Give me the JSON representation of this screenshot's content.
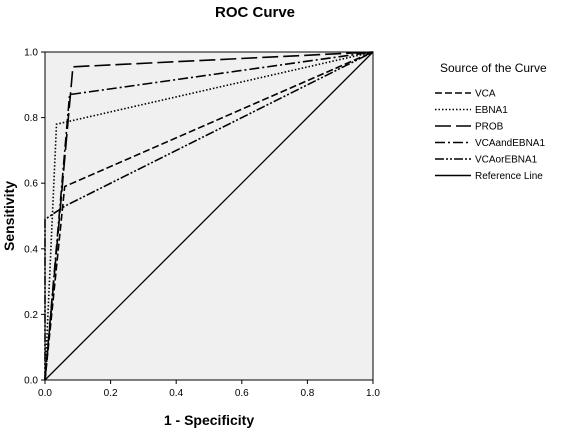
{
  "chart_data": {
    "type": "line",
    "title": "ROC Curve",
    "xlabel": "1 - Specificity",
    "ylabel": "Sensitivity",
    "xlim": [
      0,
      1
    ],
    "ylim": [
      0,
      1
    ],
    "xticks": [
      "0.0",
      "0.2",
      "0.4",
      "0.6",
      "0.8",
      "1.0"
    ],
    "yticks": [
      "0.0",
      "0.2",
      "0.4",
      "0.6",
      "0.8",
      "1.0"
    ],
    "grid": false,
    "legend": {
      "title": "Source of the Curve",
      "position": "right"
    },
    "series": [
      {
        "name": "VCA",
        "dash": "7,3",
        "x": [
          0,
          0.06,
          1.0
        ],
        "y": [
          0,
          0.59,
          1.0
        ]
      },
      {
        "name": "EBNA1",
        "dash": "1.5,2",
        "x": [
          0,
          0.035,
          1.0
        ],
        "y": [
          0,
          0.78,
          1.0
        ]
      },
      {
        "name": "PROB",
        "dash": "16,5",
        "x": [
          0,
          0.085,
          1.0
        ],
        "y": [
          0,
          0.955,
          1.0
        ]
      },
      {
        "name": "VCAandEBNA1",
        "dash": "10,3,2,3",
        "x": [
          0,
          0.075,
          1.0
        ],
        "y": [
          0,
          0.87,
          1.0
        ]
      },
      {
        "name": "VCAorEBNA1",
        "dash": "9,2,2,2,2,2",
        "x": [
          0,
          0.0,
          0.06,
          1.0
        ],
        "y": [
          0,
          0.49,
          0.53,
          1.0
        ]
      },
      {
        "name": "Reference Line",
        "dash": "",
        "x": [
          0,
          1.0
        ],
        "y": [
          0,
          1.0
        ]
      }
    ]
  }
}
